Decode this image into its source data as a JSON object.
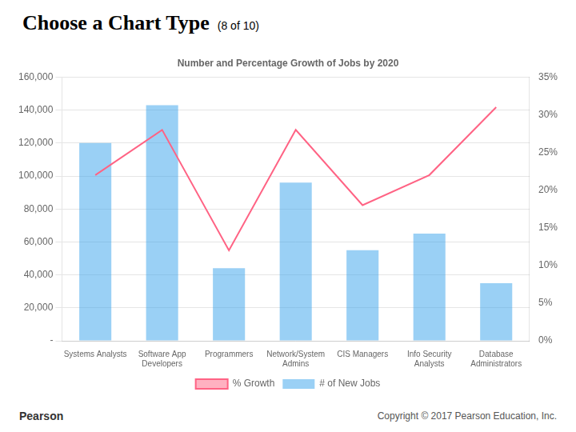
{
  "chart_data": {
    "type": "bar",
    "title": "Number and Percentage Growth of Jobs by 2020",
    "annotations": [
      "Choose a Chart Type",
      "(8 of 10)",
      "Pearson",
      "Copyright © 2017 Pearson Education, Inc."
    ],
    "categories": [
      "Systems Analysts",
      "Software App\nDevelopers",
      "Programmers",
      "Network/System\nAdmins",
      "CIS Managers",
      "Info Security\nAnalysts",
      "Database\nAdministrators"
    ],
    "series": [
      {
        "name": "# of New Jobs",
        "type": "bar",
        "values": [
          120000,
          143000,
          44000,
          96000,
          55000,
          65000,
          35000
        ]
      },
      {
        "name": "% Growth",
        "type": "line",
        "axis": "y2",
        "marker": "none",
        "values": [
          0.22,
          0.28,
          0.12,
          0.28,
          0.18,
          0.22,
          0.31
        ]
      }
    ],
    "ylim": [
      0,
      160000
    ],
    "yticks": [
      {
        "value": 0,
        "label": "-"
      },
      {
        "value": 20000,
        "label": "20,000"
      },
      {
        "value": 40000,
        "label": "40,000"
      },
      {
        "value": 60000,
        "label": "60,000"
      },
      {
        "value": 80000,
        "label": "80,000"
      },
      {
        "value": 100000,
        "label": "100,000"
      },
      {
        "value": 120000,
        "label": "120,000"
      },
      {
        "value": 140000,
        "label": "140,000"
      },
      {
        "value": 160000,
        "label": "160,000"
      }
    ],
    "y2lim": [
      0,
      0.35
    ],
    "y2ticks": [
      {
        "value": 0,
        "label": "0%"
      },
      {
        "value": 0.05,
        "label": "5%"
      },
      {
        "value": 0.1,
        "label": "10%"
      },
      {
        "value": 0.15,
        "label": "15%"
      },
      {
        "value": 0.2,
        "label": "20%"
      },
      {
        "value": 0.25,
        "label": "25%"
      },
      {
        "value": 0.3,
        "label": "30%"
      },
      {
        "value": 0.35,
        "label": "35%"
      }
    ],
    "grid": true,
    "legend": "bottom"
  }
}
